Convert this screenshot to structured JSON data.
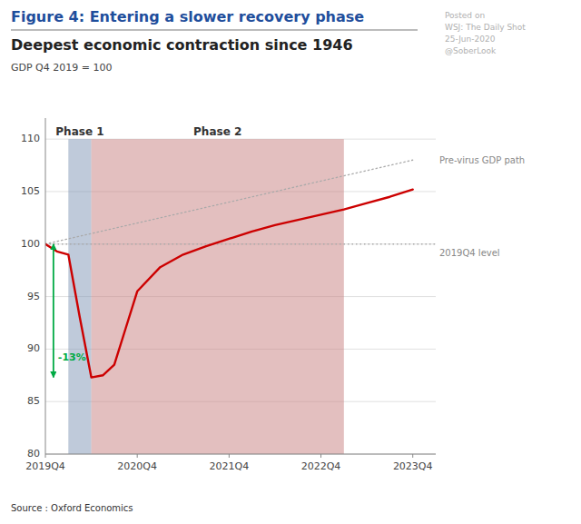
{
  "chart_data": {
    "type": "line",
    "heading": "Figure 4: Entering a slower recovery phase",
    "title": "Deepest economic contraction since 1946",
    "subtitle": "GDP Q4 2019 = 100",
    "source": "Source : Oxford Economics",
    "watermark": [
      "Posted on",
      "WSJ: The Daily Shot",
      "25-Jun-2020",
      "@SoberLook"
    ],
    "xlim": [
      0,
      17
    ],
    "ylim": [
      80,
      112
    ],
    "xticks": [
      {
        "value": 0,
        "label": "2019Q4"
      },
      {
        "value": 4,
        "label": "2020Q4"
      },
      {
        "value": 8,
        "label": "2021Q4"
      },
      {
        "value": 12,
        "label": "2022Q4"
      },
      {
        "value": 16,
        "label": "2023Q4"
      }
    ],
    "yticks": [
      80,
      85,
      90,
      95,
      100,
      105,
      110
    ],
    "grid": true,
    "series": [
      {
        "color": "#cc0000",
        "line_style": "solid",
        "x": [
          0,
          0.5,
          1.0,
          1.5,
          2.0,
          2.5,
          3.0,
          3.5,
          4.0,
          5.0,
          6.0,
          7.0,
          8.0,
          9.0,
          10.0,
          11.0,
          12.0,
          13.0,
          14.0,
          15.0,
          16.0
        ],
        "values": [
          100.0,
          99.3,
          99.0,
          93.0,
          87.3,
          87.5,
          88.5,
          92.0,
          95.5,
          97.8,
          99.0,
          99.8,
          100.5,
          101.2,
          101.8,
          102.3,
          102.8,
          103.3,
          103.9,
          104.5,
          105.2
        ]
      },
      {
        "name": "Pre-virus GDP path",
        "color": "#aaaaaa",
        "line_style": "dotted",
        "x": [
          0,
          16
        ],
        "values": [
          100.0,
          108.0
        ]
      }
    ],
    "reference_lines": [
      {
        "value": 100,
        "label": "2019Q4 level",
        "color": "#aaaaaa",
        "line_style": "dotted"
      }
    ],
    "phases": [
      {
        "label": "Phase 1",
        "start": 1.0,
        "end": 2.0,
        "top": 110,
        "color": "#7f96b5"
      },
      {
        "label": "Phase 2",
        "start": 2.0,
        "end": 13.0,
        "top": 110,
        "color": "#c88080"
      }
    ],
    "annotations": [
      {
        "label": "-13%",
        "x": 0.35,
        "y_start": 100.0,
        "y_end": 87.3,
        "color": "#00aa44"
      }
    ]
  }
}
